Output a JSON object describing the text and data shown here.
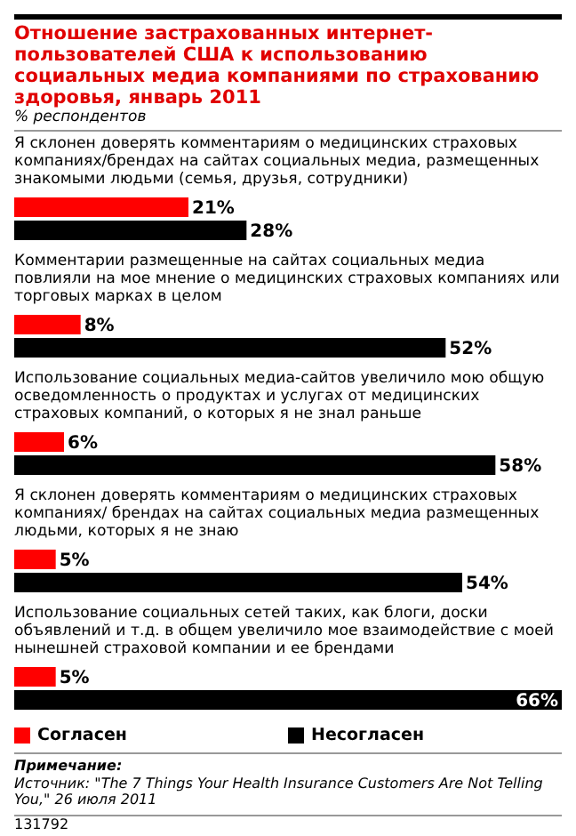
{
  "chart_data": {
    "type": "bar",
    "orientation": "horizontal",
    "title": "Отношение застрахованных интернет-пользователей США к использованию социальных медиа компаниями по страхованию здоровья, январь 2011",
    "subtitle": "% респондентов",
    "categories": [
      "Я склонен доверять комментариям о медицинских страховых компаниях/брендах на сайтах социальных медиа, размещенных знакомыми людьми (семья, друзья, сотрудники)",
      "Комментарии размещенные на сайтах социальных медиа повлияли на мое мнение о медицинских страховых компаниях или торговых марках в целом",
      "Использование социальных медиа-сайтов увеличило мою общую осведомленность о продуктах и услугах от медицинских страховых компаний, о которых я не знал раньше",
      "Я склонен доверять комментариям о медицинских страховых компаниях/ брендах на сайтах социальных медиа размещенных людьми, которых я не знаю",
      "Использование социальных сетей таких, как блоги, доски объявлений и т.д. в общем увеличило мое взаимодействие с моей нынешней страховой компании и ее брендами"
    ],
    "series": [
      {
        "name": "Согласен",
        "color": "#ff0000",
        "values": [
          21,
          8,
          6,
          5,
          5
        ],
        "value_labels": [
          "21%",
          "8%",
          "6%",
          "5%",
          "5%"
        ]
      },
      {
        "name": "Несогласен",
        "color": "#000000",
        "values": [
          28,
          52,
          58,
          54,
          66
        ],
        "value_labels": [
          "28%",
          "52%",
          "58%",
          "54%",
          "66%"
        ]
      }
    ],
    "legend": "bottom",
    "annotations": [
      "Примечание:",
      "Источник: \"The 7 Things Your Health Insurance Customers Are Not Telling You,\" 26 июля 2011",
      "131792"
    ]
  }
}
